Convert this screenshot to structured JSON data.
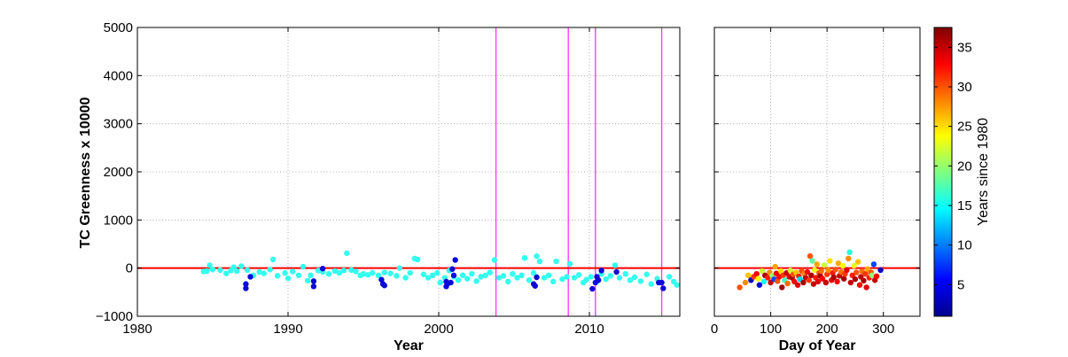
{
  "chart_data": [
    {
      "type": "scatter",
      "panel": "time-series",
      "title": "",
      "xlabel": "Year",
      "ylabel": "TC Greenness x 10000",
      "xlim": [
        1980,
        2016
      ],
      "ylim": [
        -1000,
        5000
      ],
      "xticks": [
        1980,
        1990,
        2000,
        2010
      ],
      "xtick_labels": [
        "1980",
        "1990",
        "2000",
        "2010"
      ],
      "yticks": [
        -1000,
        0,
        1000,
        2000,
        3000,
        4000,
        5000
      ],
      "ytick_labels": [
        "−1000",
        "0",
        "1000",
        "2000",
        "3000",
        "4000",
        "5000"
      ],
      "grid": true,
      "reference_line": {
        "y": 0,
        "color": "#ff0000"
      },
      "vertical_lines": {
        "x": [
          2003.8,
          2008.6,
          2010.4,
          2014.8
        ],
        "color": "#ff33ff"
      },
      "series": [
        {
          "color": "#33ffee",
          "points": [
            [
              1984.4,
              -70
            ],
            [
              1984.6,
              -60
            ],
            [
              1984.8,
              60
            ],
            [
              1985.0,
              -30
            ],
            [
              1985.5,
              -40
            ],
            [
              1985.9,
              -110
            ],
            [
              1986.2,
              -50
            ],
            [
              1986.4,
              20
            ],
            [
              1986.6,
              -60
            ],
            [
              1986.9,
              40
            ],
            [
              1987.3,
              -40
            ],
            [
              1987.7,
              -150
            ],
            [
              1988.1,
              -80
            ],
            [
              1988.4,
              -110
            ],
            [
              1988.8,
              -30
            ],
            [
              1989.0,
              180
            ],
            [
              1989.3,
              -160
            ],
            [
              1989.8,
              -100
            ],
            [
              1990.0,
              -210
            ],
            [
              1990.3,
              -70
            ],
            [
              1990.7,
              -150
            ],
            [
              1991.0,
              30
            ],
            [
              1991.3,
              -260
            ],
            [
              1991.5,
              -150
            ],
            [
              1992.0,
              -50
            ],
            [
              1992.3,
              -80
            ],
            [
              1992.7,
              -120
            ],
            [
              1993.1,
              -60
            ],
            [
              1993.4,
              -100
            ],
            [
              1993.7,
              -50
            ],
            [
              1993.9,
              310
            ],
            [
              1994.2,
              -40
            ],
            [
              1994.5,
              -70
            ],
            [
              1994.8,
              -150
            ],
            [
              1995.0,
              -120
            ],
            [
              1995.3,
              -140
            ],
            [
              1995.6,
              -100
            ],
            [
              1996.0,
              -150
            ],
            [
              1996.4,
              -90
            ],
            [
              1996.8,
              -110
            ],
            [
              1997.2,
              -160
            ],
            [
              1997.4,
              0
            ],
            [
              1997.8,
              -200
            ],
            [
              1998.1,
              -100
            ],
            [
              1998.4,
              200
            ],
            [
              1998.6,
              180
            ],
            [
              1999.0,
              -130
            ],
            [
              1999.3,
              -200
            ],
            [
              1999.6,
              -150
            ],
            [
              1999.9,
              -100
            ],
            [
              2000.1,
              -300
            ],
            [
              2000.4,
              -200
            ],
            [
              2000.7,
              -50
            ],
            [
              2001.0,
              -180
            ],
            [
              2001.3,
              -250
            ],
            [
              2001.6,
              -150
            ],
            [
              2001.9,
              -220
            ],
            [
              2002.2,
              -120
            ],
            [
              2002.5,
              -270
            ],
            [
              2002.8,
              -180
            ],
            [
              2003.1,
              -150
            ],
            [
              2003.4,
              -90
            ],
            [
              2003.7,
              170
            ],
            [
              2004.0,
              -200
            ],
            [
              2004.3,
              -160
            ],
            [
              2004.6,
              -280
            ],
            [
              2004.9,
              -120
            ],
            [
              2005.2,
              -200
            ],
            [
              2005.5,
              -150
            ],
            [
              2005.7,
              210
            ],
            [
              2006.0,
              -250
            ],
            [
              2006.3,
              -100
            ],
            [
              2006.5,
              250
            ],
            [
              2006.7,
              140
            ],
            [
              2007.0,
              -200
            ],
            [
              2007.3,
              -150
            ],
            [
              2007.6,
              -280
            ],
            [
              2007.8,
              140
            ],
            [
              2008.2,
              -230
            ],
            [
              2008.5,
              -180
            ],
            [
              2008.7,
              90
            ],
            [
              2009.0,
              -200
            ],
            [
              2009.3,
              -140
            ],
            [
              2009.6,
              -300
            ],
            [
              2009.8,
              -240
            ],
            [
              2010.1,
              -180
            ],
            [
              2010.5,
              -280
            ],
            [
              2010.8,
              -120
            ],
            [
              2011.1,
              -230
            ],
            [
              2011.4,
              -160
            ],
            [
              2011.7,
              60
            ],
            [
              2012.0,
              -200
            ],
            [
              2012.4,
              -120
            ],
            [
              2012.7,
              -250
            ],
            [
              2013.0,
              -190
            ],
            [
              2013.4,
              -270
            ],
            [
              2013.8,
              -130
            ],
            [
              2014.1,
              -330
            ],
            [
              2014.5,
              -220
            ],
            [
              2015.3,
              -180
            ],
            [
              2015.6,
              -280
            ],
            [
              2015.8,
              -350
            ]
          ]
        },
        {
          "color": "#0a0ad8",
          "points": [
            [
              1987.2,
              -330
            ],
            [
              1987.2,
              -420
            ],
            [
              1987.5,
              -180
            ],
            [
              1991.7,
              -270
            ],
            [
              1991.7,
              -380
            ],
            [
              1992.3,
              -10
            ],
            [
              1996.2,
              -240
            ],
            [
              1996.3,
              -330
            ],
            [
              1996.4,
              -360
            ],
            [
              2000.5,
              -280
            ],
            [
              2000.5,
              -380
            ],
            [
              2000.6,
              -320
            ],
            [
              2000.8,
              -300
            ],
            [
              2000.9,
              -20
            ],
            [
              2001.0,
              -150
            ],
            [
              2001.1,
              170
            ],
            [
              2006.3,
              -330
            ],
            [
              2006.4,
              -370
            ],
            [
              2006.5,
              -190
            ],
            [
              2010.2,
              -430
            ],
            [
              2010.4,
              -300
            ],
            [
              2010.5,
              -180
            ],
            [
              2010.6,
              -250
            ],
            [
              2010.8,
              -50
            ],
            [
              2011.8,
              -80
            ],
            [
              2014.6,
              -300
            ],
            [
              2014.8,
              -300
            ],
            [
              2014.9,
              -420
            ]
          ]
        }
      ]
    },
    {
      "type": "scatter",
      "panel": "day-of-year",
      "title": "",
      "xlabel": "Day of Year",
      "ylabel": "",
      "xlim": [
        0,
        365
      ],
      "ylim": [
        -1000,
        5000
      ],
      "xticks": [
        0,
        100,
        200,
        300
      ],
      "xtick_labels": [
        "0",
        "100",
        "200",
        "300"
      ],
      "grid": true,
      "reference_line": {
        "y": 0,
        "color": "#ff0000"
      },
      "point_value_range": [
        1,
        37.5
      ],
      "points": [
        [
          45,
          -400,
          30
        ],
        [
          55,
          -300,
          28
        ],
        [
          60,
          -150,
          26
        ],
        [
          65,
          -250,
          3
        ],
        [
          70,
          -180,
          31
        ],
        [
          75,
          -120,
          33
        ],
        [
          78,
          -220,
          24
        ],
        [
          80,
          -350,
          4
        ],
        [
          85,
          -60,
          22
        ],
        [
          88,
          -280,
          15
        ],
        [
          90,
          -150,
          36
        ],
        [
          95,
          -200,
          32
        ],
        [
          98,
          -90,
          28
        ],
        [
          100,
          -300,
          35
        ],
        [
          103,
          -160,
          20
        ],
        [
          106,
          -230,
          8
        ],
        [
          108,
          30,
          27
        ],
        [
          110,
          -110,
          34
        ],
        [
          112,
          -270,
          30
        ],
        [
          115,
          -180,
          33
        ],
        [
          118,
          -60,
          25
        ],
        [
          120,
          -400,
          36
        ],
        [
          122,
          -150,
          31
        ],
        [
          125,
          -250,
          17
        ],
        [
          128,
          -100,
          35
        ],
        [
          130,
          -320,
          29
        ],
        [
          133,
          -180,
          34
        ],
        [
          135,
          -50,
          22
        ],
        [
          138,
          -200,
          36
        ],
        [
          140,
          -130,
          30
        ],
        [
          142,
          -280,
          33
        ],
        [
          145,
          -90,
          26
        ],
        [
          148,
          -350,
          34
        ],
        [
          150,
          -170,
          32
        ],
        [
          152,
          -230,
          13
        ],
        [
          155,
          -60,
          30
        ],
        [
          158,
          -300,
          36
        ],
        [
          160,
          -120,
          28
        ],
        [
          162,
          -200,
          35
        ],
        [
          165,
          -80,
          33
        ],
        [
          168,
          -250,
          31
        ],
        [
          170,
          250,
          30
        ],
        [
          172,
          -150,
          36
        ],
        [
          174,
          150,
          18
        ],
        [
          176,
          -330,
          35
        ],
        [
          178,
          -40,
          23
        ],
        [
          180,
          -200,
          32
        ],
        [
          182,
          80,
          27
        ],
        [
          184,
          -280,
          34
        ],
        [
          186,
          -100,
          30
        ],
        [
          188,
          -160,
          36
        ],
        [
          190,
          -60,
          29
        ],
        [
          192,
          -220,
          33
        ],
        [
          195,
          60,
          22
        ],
        [
          198,
          -300,
          35
        ],
        [
          200,
          -130,
          31
        ],
        [
          202,
          -40,
          28
        ],
        [
          205,
          150,
          25
        ],
        [
          208,
          -250,
          34
        ],
        [
          210,
          -100,
          32
        ],
        [
          212,
          -190,
          36
        ],
        [
          215,
          -30,
          30
        ],
        [
          218,
          -280,
          33
        ],
        [
          220,
          100,
          27
        ],
        [
          222,
          -160,
          35
        ],
        [
          225,
          -80,
          29
        ],
        [
          228,
          50,
          24
        ],
        [
          230,
          -220,
          36
        ],
        [
          232,
          -120,
          31
        ],
        [
          235,
          -40,
          34
        ],
        [
          238,
          200,
          28
        ],
        [
          240,
          330,
          16
        ],
        [
          242,
          -300,
          35
        ],
        [
          245,
          -150,
          32
        ],
        [
          248,
          50,
          23
        ],
        [
          250,
          -230,
          36
        ],
        [
          252,
          -90,
          30
        ],
        [
          255,
          130,
          26
        ],
        [
          258,
          -350,
          33
        ],
        [
          260,
          -180,
          35
        ],
        [
          262,
          -60,
          29
        ],
        [
          265,
          -260,
          36
        ],
        [
          268,
          -120,
          31
        ],
        [
          270,
          -400,
          34
        ],
        [
          272,
          -20,
          27
        ],
        [
          275,
          -200,
          32
        ],
        [
          278,
          -90,
          30
        ],
        [
          280,
          -150,
          20
        ],
        [
          283,
          80,
          8
        ],
        [
          285,
          -250,
          35
        ],
        [
          288,
          -170,
          33
        ],
        [
          295,
          -40,
          3
        ]
      ]
    }
  ],
  "colorbar": {
    "label": "Years since 1980",
    "range": [
      1,
      37.5
    ],
    "ticks": [
      5,
      10,
      15,
      20,
      25,
      30,
      35
    ],
    "tick_labels": [
      "5",
      "10",
      "15",
      "20",
      "25",
      "30",
      "35"
    ],
    "colormap": "jet"
  }
}
